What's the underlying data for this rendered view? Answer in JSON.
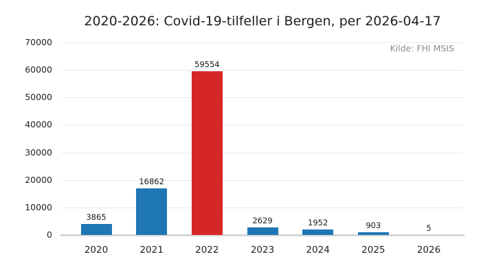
{
  "header": {
    "title": "2020-2026: Covid-19-tilfeller i Bergen, per 2026-04-17",
    "source_note": "Kilde: FHI MSIS"
  },
  "chart_data": {
    "type": "bar",
    "title": "2020-2026: Covid-19-tilfeller i Bergen, per 2026-04-17",
    "annotation": "Kilde: FHI MSIS",
    "categories": [
      "2020",
      "2021",
      "2022",
      "2023",
      "2024",
      "2025",
      "2026"
    ],
    "values": [
      3865,
      16862,
      59554,
      2629,
      1952,
      903,
      5
    ],
    "value_labels": [
      "3865",
      "16862",
      "59554",
      "2629",
      "1952",
      "903",
      "5"
    ],
    "bar_colors": [
      "#1f77b4",
      "#1f77b4",
      "#d62728",
      "#1f77b4",
      "#1f77b4",
      "#1f77b4",
      "#1f77b4"
    ],
    "xlabel": "",
    "ylabel": "",
    "ylim": [
      0,
      70000
    ],
    "yticks": [
      0,
      10000,
      20000,
      30000,
      40000,
      50000,
      60000,
      70000
    ],
    "ytick_labels": [
      "0",
      "10000",
      "20000",
      "30000",
      "40000",
      "50000",
      "60000",
      "70000"
    ],
    "grid": true,
    "legend": "none",
    "colors": {
      "bar_default": "#1f77b4",
      "bar_highlight": "#d62728",
      "grid": "#e9e9e9",
      "axis_line": "#d5d5d5",
      "text": "#1f1f1f",
      "muted_text": "#8c8c8c",
      "background": "#ffffff"
    }
  }
}
